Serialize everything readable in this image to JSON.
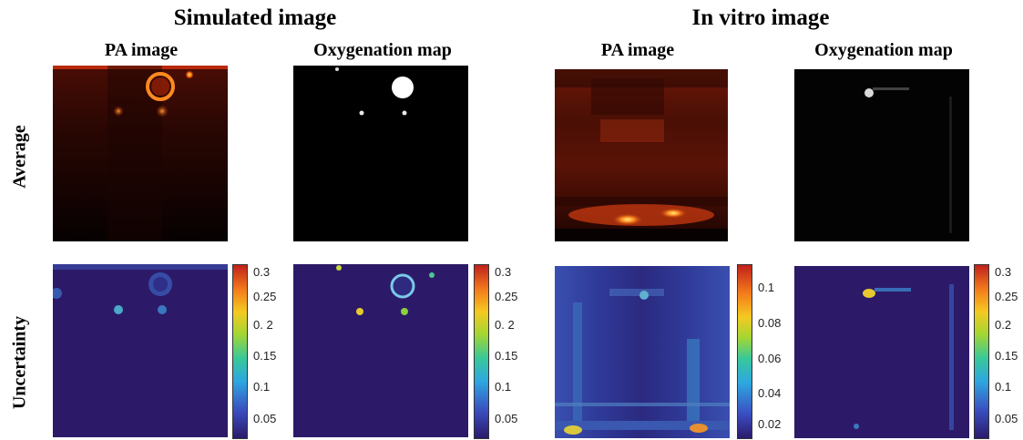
{
  "headers": {
    "simulated": "Simulated image",
    "in_vitro": "In vitro image"
  },
  "columns": {
    "pa_image_1": "PA image",
    "oxygenation_map_1": "Oxygenation map",
    "pa_image_2": "PA image",
    "oxygenation_map_2": "Oxygenation map"
  },
  "rows": {
    "average": "Average",
    "uncertainty": "Uncertainty"
  },
  "colorbars": {
    "simulated_pa": {
      "ticks": [
        "0.3",
        "0.25",
        "0. 2",
        "0.15",
        "0.1",
        "0.05"
      ]
    },
    "simulated_oxygenation": {
      "ticks": [
        "0.3",
        "0.25",
        "0. 2",
        "0.15",
        "0.1",
        "0.05"
      ]
    },
    "in_vitro_pa": {
      "ticks": [
        "0.1",
        "0.08",
        "0.06",
        "0.04",
        "0.02"
      ]
    },
    "in_vitro_oxygenation": {
      "ticks": [
        "0.3",
        "0.25",
        "0.2",
        "0.15",
        "0.1",
        "0.05"
      ]
    }
  }
}
